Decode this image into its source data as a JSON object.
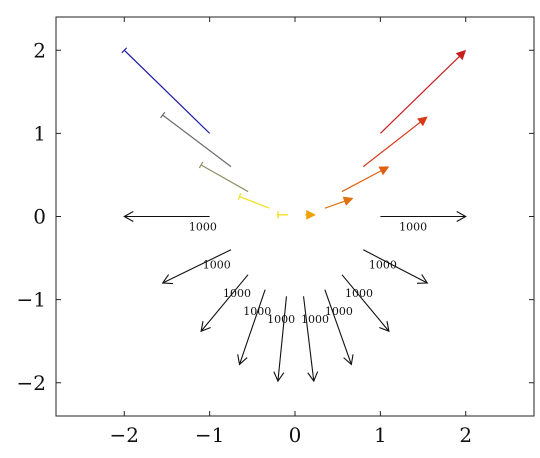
{
  "chart_data": {
    "type": "scatter",
    "title": "",
    "xlabel": "",
    "ylabel": "",
    "xlim": [
      -2.8,
      2.8
    ],
    "ylim": [
      -2.4,
      2.4
    ],
    "xticks": [
      -2,
      -1,
      0,
      1,
      2
    ],
    "yticks": [
      -2,
      -1,
      0,
      1,
      2
    ],
    "xtick_labels": [
      "−2",
      "−1",
      "0",
      "1",
      "2"
    ],
    "ytick_labels": [
      "−2",
      "−1",
      "0",
      "1",
      "2"
    ],
    "grid": false,
    "legend": "none",
    "upper_arrows": [
      {
        "x1": -1.0,
        "y1": 1.0,
        "x2": -2.0,
        "y2": 2.0,
        "color": "#1a1aa6",
        "head": "bar"
      },
      {
        "x1": -0.75,
        "y1": 0.6,
        "x2": -1.55,
        "y2": 1.22,
        "color": "#6b6b6b",
        "head": "bar"
      },
      {
        "x1": -0.55,
        "y1": 0.3,
        "x2": -1.1,
        "y2": 0.62,
        "color": "#8f8f68",
        "head": "bar"
      },
      {
        "x1": -0.3,
        "y1": 0.1,
        "x2": -0.65,
        "y2": 0.24,
        "color": "#f0e020",
        "head": "bar"
      },
      {
        "x1": -0.08,
        "y1": 0.02,
        "x2": -0.2,
        "y2": 0.02,
        "color": "#f5d800",
        "head": "bar"
      },
      {
        "x1": 0.12,
        "y1": 0.02,
        "x2": 0.24,
        "y2": 0.02,
        "color": "#f0a000",
        "head": "triangle"
      },
      {
        "x1": 0.35,
        "y1": 0.1,
        "x2": 0.68,
        "y2": 0.22,
        "color": "#e07010",
        "head": "triangle"
      },
      {
        "x1": 0.55,
        "y1": 0.3,
        "x2": 1.1,
        "y2": 0.6,
        "color": "#e06010",
        "head": "triangle"
      },
      {
        "x1": 0.8,
        "y1": 0.6,
        "x2": 1.55,
        "y2": 1.2,
        "color": "#d83a18",
        "head": "triangle"
      },
      {
        "x1": 1.0,
        "y1": 1.0,
        "x2": 2.0,
        "y2": 2.0,
        "color": "#c81e1e",
        "head": "triangle"
      }
    ],
    "lower_arrows": [
      {
        "x1": -1.0,
        "y1": 0.0,
        "x2": -2.0,
        "y2": 0.0,
        "label": "1000"
      },
      {
        "x1": -0.75,
        "y1": -0.4,
        "x2": -1.55,
        "y2": -0.8,
        "label": "1000"
      },
      {
        "x1": -0.55,
        "y1": -0.7,
        "x2": -1.1,
        "y2": -1.38,
        "label": "1000"
      },
      {
        "x1": -0.35,
        "y1": -0.88,
        "x2": -0.65,
        "y2": -1.78,
        "label": "1000"
      },
      {
        "x1": -0.1,
        "y1": -0.96,
        "x2": -0.2,
        "y2": -1.98,
        "label": "1000"
      },
      {
        "x1": 0.1,
        "y1": -0.96,
        "x2": 0.22,
        "y2": -1.98,
        "label": "1000"
      },
      {
        "x1": 0.35,
        "y1": -0.88,
        "x2": 0.66,
        "y2": -1.78,
        "label": "1000"
      },
      {
        "x1": 0.55,
        "y1": -0.7,
        "x2": 1.1,
        "y2": -1.38,
        "label": "1000"
      },
      {
        "x1": 0.8,
        "y1": -0.4,
        "x2": 1.55,
        "y2": -0.8,
        "label": "1000"
      },
      {
        "x1": 1.0,
        "y1": 0.0,
        "x2": 2.0,
        "y2": 0.0,
        "label": "1000"
      }
    ]
  }
}
